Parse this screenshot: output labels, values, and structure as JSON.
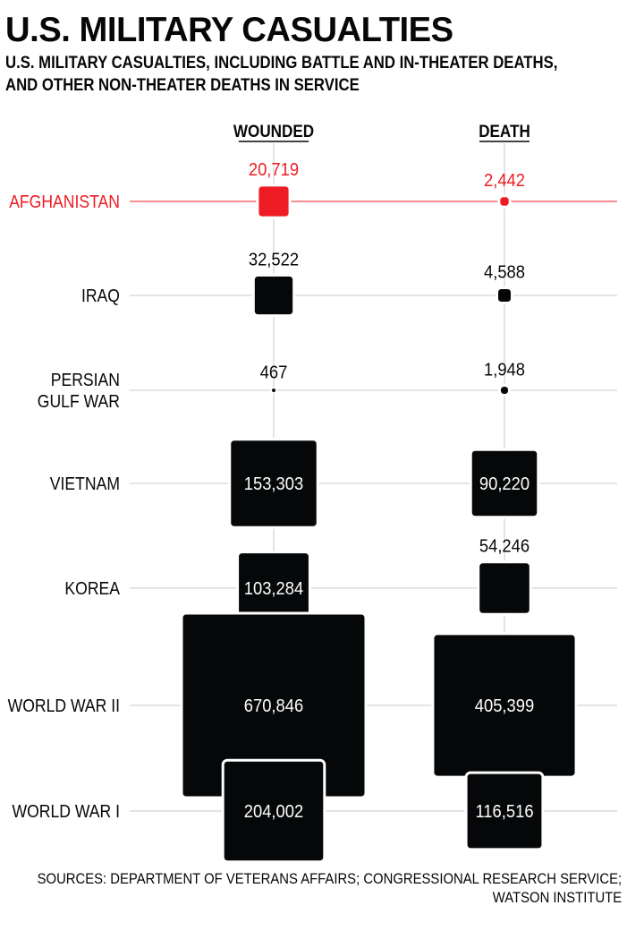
{
  "title": "U.S. MILITARY CASUALTIES",
  "subtitle_line1": "U.S. MILITARY CASUALTIES, INCLUDING BATTLE AND IN-THEATER DEATHS,",
  "subtitle_line2": "AND OTHER NON-THEATER DEATHS IN SERVICE",
  "source_line1": "SOURCES: DEPARTMENT OF VETERANS AFFAIRS; CONGRESSIONAL RESEARCH SERVICE;",
  "source_line2": "WATSON INSTITUTE",
  "colors": {
    "highlight": "#ee1c24",
    "mark": "#050708",
    "grid": "#c8c8c8"
  },
  "chart_data": {
    "type": "proportional-square",
    "columns": [
      "WOUNDED",
      "DEATH"
    ],
    "rows": [
      {
        "label": [
          "AFGHANISTAN"
        ],
        "wounded": 20719,
        "wounded_label": "20,719",
        "death": 2442,
        "death_label": "2,442",
        "highlight": true
      },
      {
        "label": [
          "IRAQ"
        ],
        "wounded": 32522,
        "wounded_label": "32,522",
        "death": 4588,
        "death_label": "4,588"
      },
      {
        "label": [
          "PERSIAN",
          "GULF WAR"
        ],
        "wounded": 467,
        "wounded_label": "467",
        "death": 1948,
        "death_label": "1,948"
      },
      {
        "label": [
          "VIETNAM"
        ],
        "wounded": 153303,
        "wounded_label": "153,303",
        "death": 90220,
        "death_label": "90,220"
      },
      {
        "label": [
          "KOREA"
        ],
        "wounded": 103284,
        "wounded_label": "103,284",
        "death": 54246,
        "death_label": "54,246"
      },
      {
        "label": [
          "WORLD WAR II"
        ],
        "wounded": 670846,
        "wounded_label": "670,846",
        "death": 405399,
        "death_label": "405,399"
      },
      {
        "label": [
          "WORLD WAR I"
        ],
        "wounded": 204002,
        "wounded_label": "204,002",
        "death": 116516,
        "death_label": "116,516"
      }
    ]
  }
}
